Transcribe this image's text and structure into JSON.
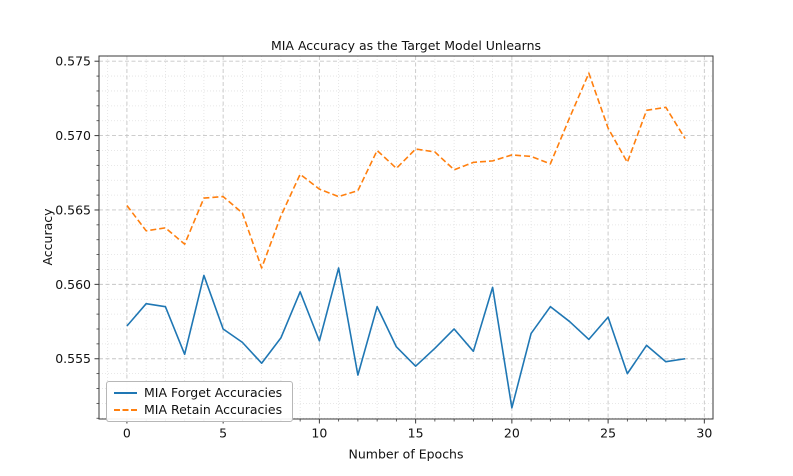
{
  "chart_data": {
    "type": "line",
    "title": "MIA Accuracy as the Target Model Unlearns",
    "xlabel": "Number of Epochs",
    "ylabel": "Accuracy",
    "x": [
      0,
      1,
      2,
      3,
      4,
      5,
      6,
      7,
      8,
      9,
      10,
      11,
      12,
      13,
      14,
      15,
      16,
      17,
      18,
      19,
      20,
      21,
      22,
      23,
      24,
      25,
      26,
      27,
      28,
      29
    ],
    "series": [
      {
        "name": "MIA Forget Accuracies",
        "color": "#1f77b4",
        "line_style": "solid",
        "values": [
          0.5572,
          0.5587,
          0.5585,
          0.5553,
          0.5606,
          0.557,
          0.5561,
          0.5547,
          0.5564,
          0.5595,
          0.5562,
          0.5611,
          0.5539,
          0.5585,
          0.5558,
          0.5545,
          0.5557,
          0.557,
          0.5555,
          0.5598,
          0.5517,
          0.5567,
          0.5585,
          0.5575,
          0.5563,
          0.5578,
          0.554,
          0.5559,
          0.5548,
          0.555
        ]
      },
      {
        "name": "MIA Retain Accuracies",
        "color": "#ff7f0e",
        "line_style": "dashed",
        "values": [
          0.5653,
          0.5636,
          0.5638,
          0.5627,
          0.5658,
          0.5659,
          0.5648,
          0.5611,
          0.5646,
          0.5674,
          0.5664,
          0.5659,
          0.5663,
          0.569,
          0.5678,
          0.5691,
          0.5689,
          0.5677,
          0.5682,
          0.5683,
          0.5687,
          0.5686,
          0.5681,
          0.5712,
          0.5742,
          0.5705,
          0.5682,
          0.5717,
          0.5719,
          0.5698
        ]
      }
    ],
    "xlim": [
      -1.45,
      30.45
    ],
    "ylim": [
      0.55095,
      0.57535
    ],
    "xticks": [
      0,
      5,
      10,
      15,
      20,
      25,
      30
    ],
    "xtick_labels": [
      "0",
      "5",
      "10",
      "15",
      "20",
      "25",
      "30"
    ],
    "yticks": [
      0.555,
      0.56,
      0.565,
      0.57,
      0.575
    ],
    "ytick_labels": [
      "0.555",
      "0.560",
      "0.565",
      "0.570",
      "0.575"
    ],
    "minor_x_step": 1,
    "minor_y_step": 0.001,
    "grid": true,
    "legend_position": "lower left",
    "colors": {
      "major_grid": "#c6c6c6",
      "minor_grid": "#e0e0e0",
      "spine": "#3a3a3a",
      "text": "#111111"
    }
  }
}
